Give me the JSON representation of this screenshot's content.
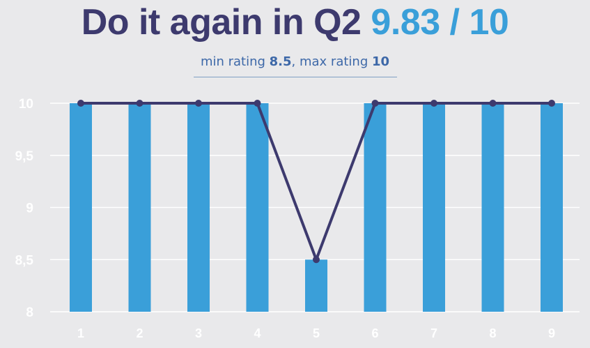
{
  "header": {
    "title_main": "Do it again in Q2",
    "title_score": "9.83 / 10",
    "subtitle_min_text": "min rating ",
    "subtitle_min_value": "8.5",
    "subtitle_max_text": ", max rating ",
    "subtitle_max_value": "10"
  },
  "colors": {
    "bar": "#3a9fd9",
    "line": "#3d3a6e",
    "title_main": "#3d3a6e",
    "title_score": "#3a9fd9",
    "grid": "#ffffff"
  },
  "chart_data": {
    "type": "bar",
    "categories": [
      "1",
      "2",
      "3",
      "4",
      "5",
      "6",
      "7",
      "8",
      "9"
    ],
    "series": [
      {
        "type": "bar",
        "values": [
          10,
          10,
          10,
          10,
          8.5,
          10,
          10,
          10,
          10
        ]
      },
      {
        "type": "line",
        "values": [
          10,
          10,
          10,
          10,
          8.5,
          10,
          10,
          10,
          10
        ]
      }
    ],
    "yticks": [
      "10",
      "9,5",
      "9",
      "8,5",
      "8"
    ],
    "ylim": [
      8,
      10
    ],
    "grid": true,
    "legend": "none",
    "title": "",
    "xlabel": "",
    "ylabel": ""
  }
}
